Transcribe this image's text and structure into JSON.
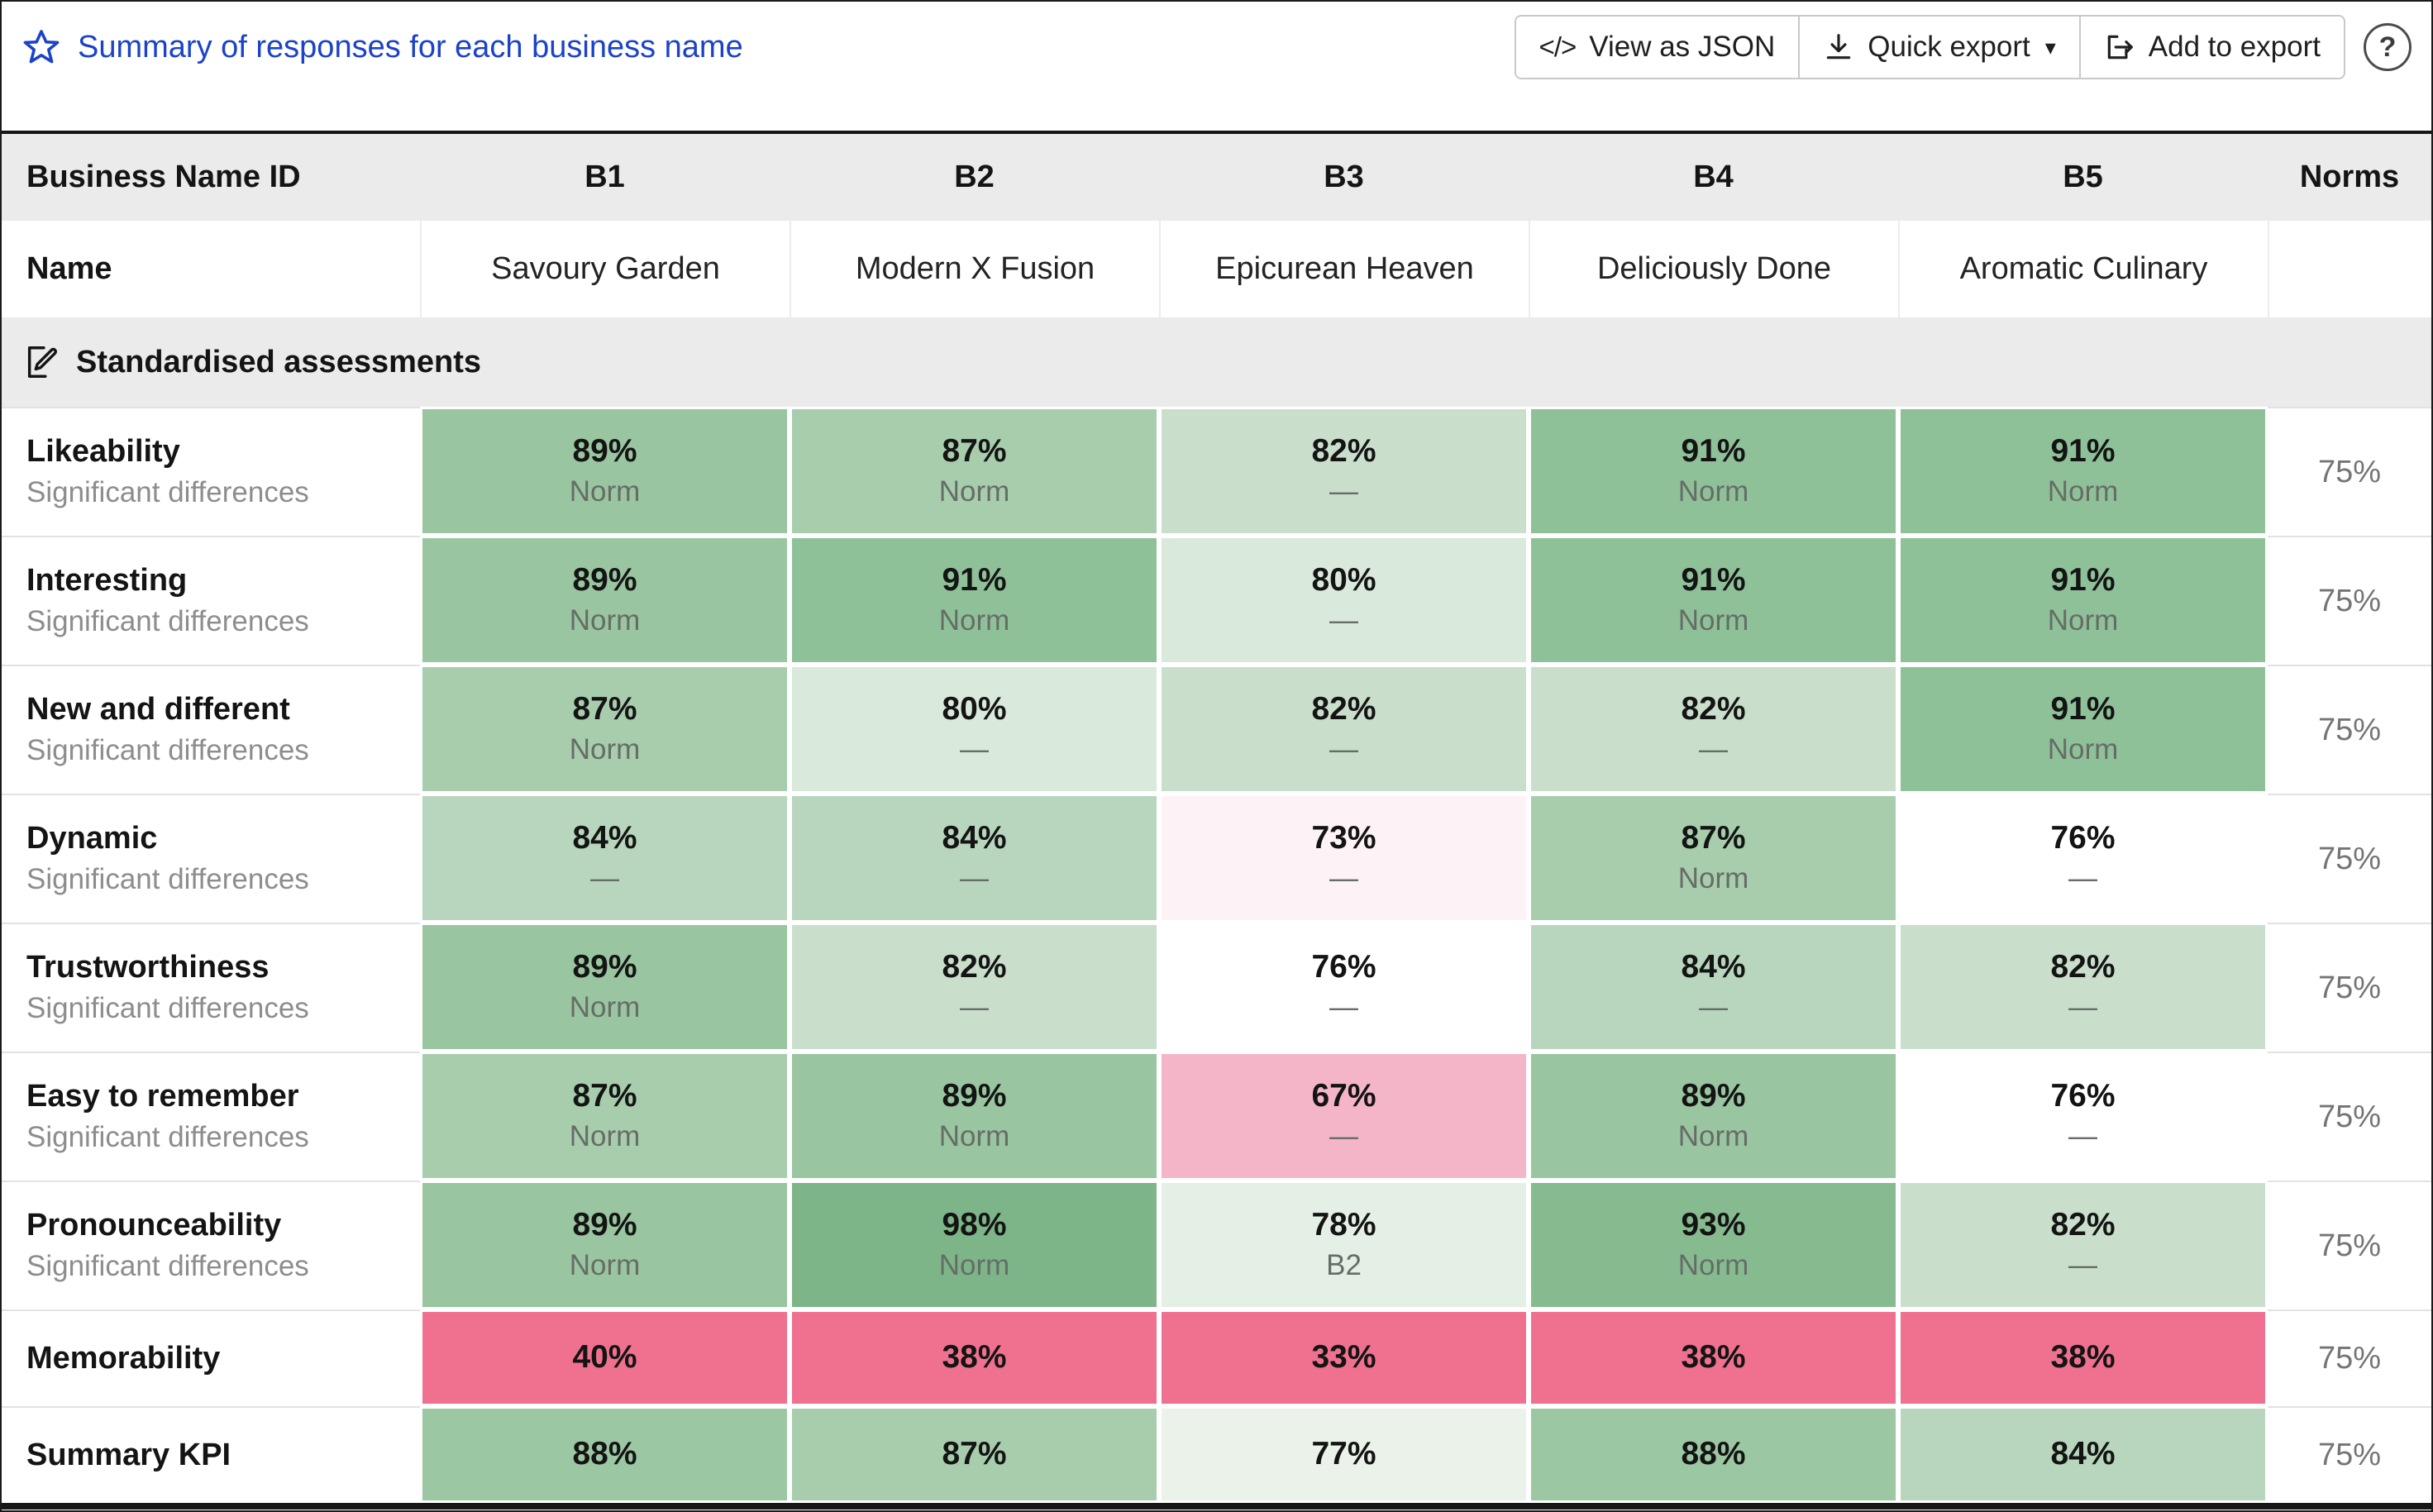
{
  "toolbar": {
    "title": "Summary of responses for each business name",
    "view_json_label": "View as JSON",
    "quick_export_label": "Quick export",
    "add_to_export_label": "Add to export",
    "code_icon_glyph": "</>",
    "caret_glyph": "▾",
    "help_glyph": "?"
  },
  "colors": {
    "accent_blue": "#1b43c8",
    "header_gray": "#ebebeb",
    "strong_green": "#7db588",
    "below_norm_pink": "#f0718f"
  },
  "table": {
    "header": {
      "id_label": "Business Name ID",
      "columns": [
        "B1",
        "B2",
        "B3",
        "B4",
        "B5"
      ],
      "norms_label": "Norms"
    },
    "name_row": {
      "label": "Name",
      "values": [
        "Savoury Garden",
        "Modern X Fusion",
        "Epicurean Heaven",
        "Deliciously Done",
        "Aromatic Culinary"
      ]
    },
    "section_title": "Standardised assessments",
    "rows": [
      {
        "label": "Likeability",
        "sub": "Significant differences",
        "norm": "75%",
        "cells": [
          {
            "value": "89%",
            "note": "Norm",
            "bg": "#99c5a0"
          },
          {
            "value": "87%",
            "note": "Norm",
            "bg": "#a7cdad"
          },
          {
            "value": "82%",
            "note": "—",
            "bg": "#c9dfcc"
          },
          {
            "value": "91%",
            "note": "Norm",
            "bg": "#8fc199"
          },
          {
            "value": "91%",
            "note": "Norm",
            "bg": "#8fc199"
          }
        ]
      },
      {
        "label": "Interesting",
        "sub": "Significant differences",
        "norm": "75%",
        "cells": [
          {
            "value": "89%",
            "note": "Norm",
            "bg": "#99c5a0"
          },
          {
            "value": "91%",
            "note": "Norm",
            "bg": "#8fc199"
          },
          {
            "value": "80%",
            "note": "—",
            "bg": "#d9e9db"
          },
          {
            "value": "91%",
            "note": "Norm",
            "bg": "#8fc199"
          },
          {
            "value": "91%",
            "note": "Norm",
            "bg": "#8fc199"
          }
        ]
      },
      {
        "label": "New and different",
        "sub": "Significant differences",
        "norm": "75%",
        "cells": [
          {
            "value": "87%",
            "note": "Norm",
            "bg": "#a7cdad"
          },
          {
            "value": "80%",
            "note": "—",
            "bg": "#d9e9db"
          },
          {
            "value": "82%",
            "note": "—",
            "bg": "#c9dfcc"
          },
          {
            "value": "82%",
            "note": "—",
            "bg": "#c9dfcc"
          },
          {
            "value": "91%",
            "note": "Norm",
            "bg": "#8fc199"
          }
        ]
      },
      {
        "label": "Dynamic",
        "sub": "Significant differences",
        "norm": "75%",
        "cells": [
          {
            "value": "84%",
            "note": "—",
            "bg": "#b8d6bd"
          },
          {
            "value": "84%",
            "note": "—",
            "bg": "#b8d6bd"
          },
          {
            "value": "73%",
            "note": "—",
            "bg": "#fdf3f6"
          },
          {
            "value": "87%",
            "note": "Norm",
            "bg": "#a7cdad"
          },
          {
            "value": "76%",
            "note": "—",
            "bg": "#ffffff"
          }
        ]
      },
      {
        "label": "Trustworthiness",
        "sub": "Significant differences",
        "norm": "75%",
        "cells": [
          {
            "value": "89%",
            "note": "Norm",
            "bg": "#99c5a0"
          },
          {
            "value": "82%",
            "note": "—",
            "bg": "#c9dfcc"
          },
          {
            "value": "76%",
            "note": "—",
            "bg": "#ffffff"
          },
          {
            "value": "84%",
            "note": "—",
            "bg": "#b8d6bd"
          },
          {
            "value": "82%",
            "note": "—",
            "bg": "#c9dfcc"
          }
        ]
      },
      {
        "label": "Easy to remember",
        "sub": "Significant differences",
        "norm": "75%",
        "cells": [
          {
            "value": "87%",
            "note": "Norm",
            "bg": "#a7cdad"
          },
          {
            "value": "89%",
            "note": "Norm",
            "bg": "#99c5a0"
          },
          {
            "value": "67%",
            "note": "—",
            "bg": "#f5b5c9"
          },
          {
            "value": "89%",
            "note": "Norm",
            "bg": "#99c5a0"
          },
          {
            "value": "76%",
            "note": "—",
            "bg": "#ffffff"
          }
        ]
      },
      {
        "label": "Pronounceability",
        "sub": "Significant differences",
        "norm": "75%",
        "cells": [
          {
            "value": "89%",
            "note": "Norm",
            "bg": "#99c5a0"
          },
          {
            "value": "98%",
            "note": "Norm",
            "bg": "#7db588"
          },
          {
            "value": "78%",
            "note": "B2",
            "bg": "#e4efe5"
          },
          {
            "value": "93%",
            "note": "Norm",
            "bg": "#86bb90"
          },
          {
            "value": "82%",
            "note": "—",
            "bg": "#c9dfcc"
          }
        ]
      },
      {
        "label": "Memorability",
        "compact": true,
        "norm": "75%",
        "cells": [
          {
            "value": "40%",
            "bg": "#f0718f"
          },
          {
            "value": "38%",
            "bg": "#f0718f"
          },
          {
            "value": "33%",
            "bg": "#f0718f"
          },
          {
            "value": "38%",
            "bg": "#f0718f"
          },
          {
            "value": "38%",
            "bg": "#f0718f"
          }
        ]
      },
      {
        "label": "Summary KPI",
        "compact": true,
        "norm": "75%",
        "cells": [
          {
            "value": "88%",
            "bg": "#9cc7a3"
          },
          {
            "value": "87%",
            "bg": "#a7cdad"
          },
          {
            "value": "77%",
            "bg": "#eaf2ea"
          },
          {
            "value": "88%",
            "bg": "#9cc7a3"
          },
          {
            "value": "84%",
            "bg": "#b8d6bd"
          }
        ]
      }
    ]
  }
}
